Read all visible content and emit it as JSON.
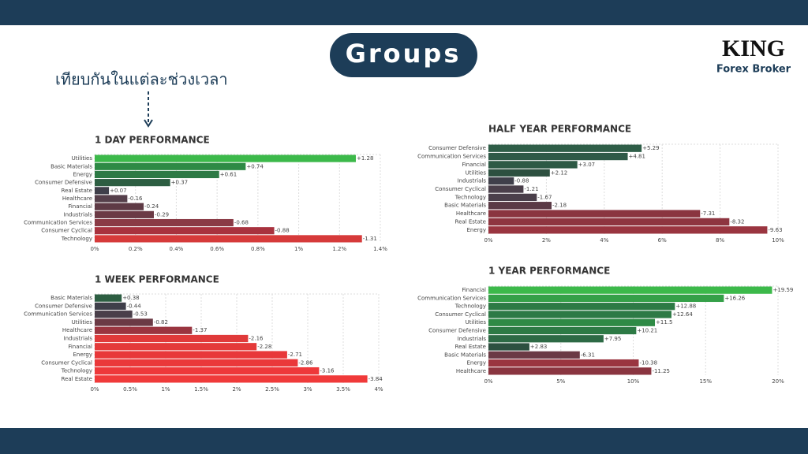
{
  "header": {
    "title": "Groups",
    "caption": "เทียบกันในแต่ละช่วงเวลา",
    "logo": "KING",
    "logo_sub": "Forex Broker"
  },
  "chart_data": [
    {
      "type": "bar",
      "orientation": "horizontal",
      "title": "1 DAY PERFORMANCE",
      "categories": [
        "Utilities",
        "Basic Materials",
        "Energy",
        "Consumer Defensive",
        "Real Estate",
        "Healthcare",
        "Financial",
        "Industrials",
        "Communication Services",
        "Consumer Cyclical",
        "Technology"
      ],
      "values": [
        1.28,
        0.74,
        0.61,
        0.37,
        0.07,
        -0.16,
        -0.24,
        -0.29,
        -0.68,
        -0.88,
        -1.31
      ],
      "value_labels": [
        "+1.28",
        "+0.74",
        "+0.61",
        "+0.37",
        "+0.07",
        "-0.16",
        "-0.24",
        "-0.29",
        "-0.68",
        "-0.88",
        "-1.31"
      ],
      "colors": [
        "#3cb94a",
        "#2e8a45",
        "#2d7a45",
        "#2d5e42",
        "#3f3f4a",
        "#553f4a",
        "#5e3a45",
        "#6b3a45",
        "#8a3a45",
        "#a8323e",
        "#d63a3a"
      ],
      "xlim": [
        0,
        1.4
      ],
      "xticks": [
        {
          "value": 0,
          "label": "0%"
        },
        {
          "value": 0.2,
          "label": "0.2%"
        },
        {
          "value": 0.4,
          "label": "0.4%"
        },
        {
          "value": 0.6,
          "label": "0.6%"
        },
        {
          "value": 0.8,
          "label": "0.8%"
        },
        {
          "value": 1,
          "label": "1%"
        },
        {
          "value": 1.2,
          "label": "1.2%"
        },
        {
          "value": 1.4,
          "label": "1.4%"
        }
      ],
      "grid": true
    },
    {
      "type": "bar",
      "orientation": "horizontal",
      "title": "1 WEEK PERFORMANCE",
      "categories": [
        "Basic Materials",
        "Consumer Defensive",
        "Communication Services",
        "Utilities",
        "Healthcare",
        "Industrials",
        "Financial",
        "Energy",
        "Consumer Cyclical",
        "Technology",
        "Real Estate"
      ],
      "values": [
        0.38,
        -0.44,
        -0.53,
        -0.82,
        -1.37,
        -2.16,
        -2.28,
        -2.71,
        -2.86,
        -3.16,
        -3.84
      ],
      "value_labels": [
        "+0.38",
        "-0.44",
        "-0.53",
        "-0.82",
        "-1.37",
        "-2.16",
        "-2.28",
        "-2.71",
        "-2.86",
        "-3.16",
        "-3.84"
      ],
      "colors": [
        "#2d5e42",
        "#3f3f4a",
        "#4a3f4a",
        "#6b3a45",
        "#9a3540",
        "#e03a3a",
        "#e43a3a",
        "#e8383a",
        "#ea383a",
        "#ee383a",
        "#f03a3a"
      ],
      "xlim": [
        0,
        4
      ],
      "xticks": [
        {
          "value": 0,
          "label": "0%"
        },
        {
          "value": 0.5,
          "label": "0.5%"
        },
        {
          "value": 1,
          "label": "1%"
        },
        {
          "value": 1.5,
          "label": "1.5%"
        },
        {
          "value": 2,
          "label": "2%"
        },
        {
          "value": 2.5,
          "label": "2.5%"
        },
        {
          "value": 3,
          "label": "3%"
        },
        {
          "value": 3.5,
          "label": "3.5%"
        },
        {
          "value": 4,
          "label": "4%"
        }
      ],
      "grid": true
    },
    {
      "type": "bar",
      "orientation": "horizontal",
      "title": "HALF YEAR PERFORMANCE",
      "categories": [
        "Consumer Defensive",
        "Communication Services",
        "Financial",
        "Utilities",
        "Industrials",
        "Consumer Cyclical",
        "Technology",
        "Basic Materials",
        "Healthcare",
        "Real Estate",
        "Energy"
      ],
      "values": [
        5.29,
        4.81,
        3.07,
        2.12,
        -0.88,
        -1.21,
        -1.67,
        -2.18,
        -7.31,
        -8.32,
        -9.63
      ],
      "value_labels": [
        "+5.29",
        "+4.81",
        "+3.07",
        "+2.12",
        "-0.88",
        "-1.21",
        "-1.67",
        "-2.18",
        "-7.31",
        "-8.32",
        "-9.63"
      ],
      "colors": [
        "#2f5e48",
        "#2f5a48",
        "#2d5a45",
        "#2d5040",
        "#3f3f4a",
        "#4a3f4a",
        "#4a3f4a",
        "#5a3a45",
        "#8a3540",
        "#8e3540",
        "#9a3540"
      ],
      "xlim": [
        0,
        10
      ],
      "xticks": [
        {
          "value": 0,
          "label": "0%"
        },
        {
          "value": 2,
          "label": "2%"
        },
        {
          "value": 4,
          "label": "4%"
        },
        {
          "value": 6,
          "label": "6%"
        },
        {
          "value": 8,
          "label": "8%"
        },
        {
          "value": 10,
          "label": "10%"
        }
      ],
      "grid": true
    },
    {
      "type": "bar",
      "orientation": "horizontal",
      "title": "1 YEAR PERFORMANCE",
      "categories": [
        "Financial",
        "Communication Services",
        "Technology",
        "Consumer Cyclical",
        "Utilities",
        "Consumer Defensive",
        "Industrials",
        "Real Estate",
        "Basic Materials",
        "Energy",
        "Healthcare"
      ],
      "values": [
        19.59,
        16.26,
        12.88,
        12.64,
        11.5,
        10.21,
        7.95,
        2.83,
        -6.31,
        -10.38,
        -11.25
      ],
      "value_labels": [
        "+19.59",
        "+16.26",
        "+12.88",
        "+12.64",
        "+11.5",
        "+10.21",
        "+7.95",
        "+2.83",
        "-6.31",
        "-10.38",
        "-11.25"
      ],
      "colors": [
        "#3cb94a",
        "#35a048",
        "#2d7a45",
        "#2d7a45",
        "#2e8a45",
        "#2d7a45",
        "#2d6a45",
        "#2d5040",
        "#6b3a45",
        "#9a3540",
        "#8a3540"
      ],
      "xlim": [
        0,
        20
      ],
      "xticks": [
        {
          "value": 0,
          "label": "0%"
        },
        {
          "value": 5,
          "label": "5%"
        },
        {
          "value": 10,
          "label": "10%"
        },
        {
          "value": 15,
          "label": "15%"
        },
        {
          "value": 20,
          "label": "20%"
        }
      ],
      "grid": true
    }
  ]
}
